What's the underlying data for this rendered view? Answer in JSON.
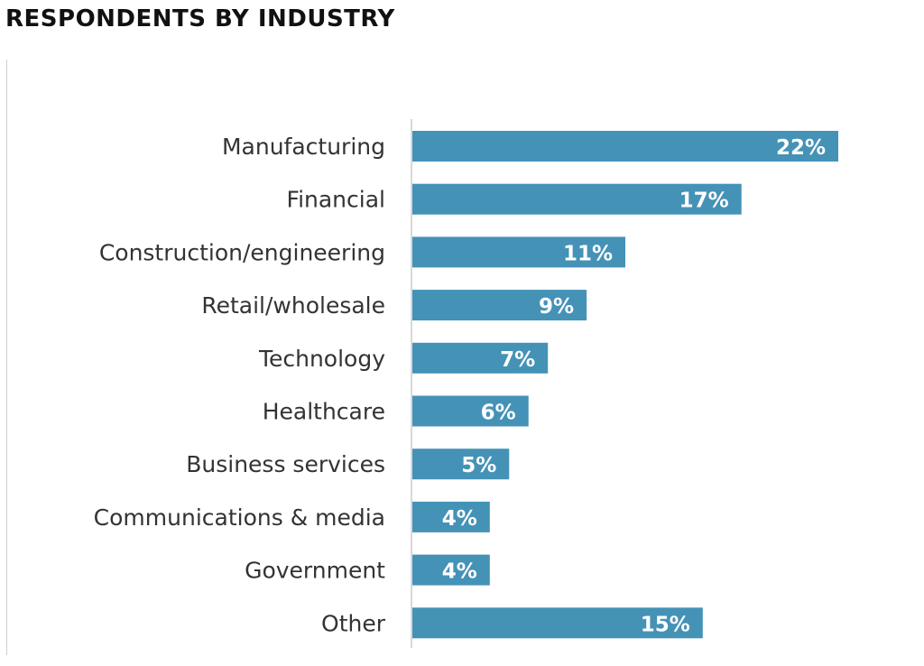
{
  "title": "RESPONDENTS BY INDUSTRY",
  "colors": {
    "bar": "#4592b7",
    "bar_label": "#ffffff",
    "category_label": "#333333",
    "axis": "#cccccc"
  },
  "chart_data": {
    "type": "bar",
    "orientation": "horizontal",
    "categories": [
      "Manufacturing",
      "Financial",
      "Construction/engineering",
      "Retail/wholesale",
      "Technology",
      "Healthcare",
      "Business services",
      "Communications & media",
      "Government",
      "Other"
    ],
    "values": [
      22,
      17,
      11,
      9,
      7,
      6,
      5,
      4,
      4,
      15
    ],
    "value_labels": [
      "22%",
      "17%",
      "11%",
      "9%",
      "7%",
      "6%",
      "5%",
      "4%",
      "4%",
      "15%"
    ],
    "xlim": [
      0,
      22
    ],
    "title": "RESPONDENTS BY INDUSTRY",
    "grid": false,
    "legend": "none"
  }
}
